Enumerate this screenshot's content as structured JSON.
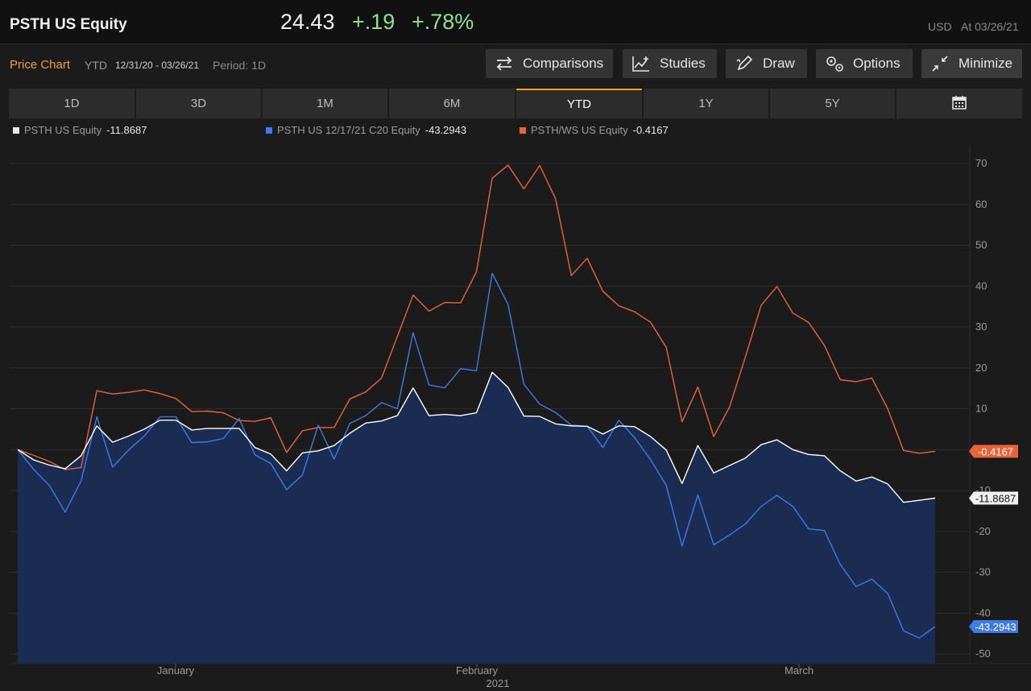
{
  "header": {
    "ticker": "PSTH US Equity",
    "price": "24.43",
    "change": "+.19",
    "change_pct": "+.78%",
    "currency": "USD",
    "as_of": "At 03/26/21"
  },
  "subheader": {
    "title": "Price Chart",
    "mode": "YTD",
    "date_range": "12/31/20 - 03/26/21",
    "period": "Period: 1D"
  },
  "toolbar": {
    "comparisons": "Comparisons",
    "studies": "Studies",
    "draw": "Draw",
    "options": "Options",
    "minimize": "Minimize"
  },
  "tabs": [
    "1D",
    "3D",
    "1M",
    "6M",
    "YTD",
    "1Y",
    "5Y"
  ],
  "active_tab": "YTD",
  "colors": {
    "accent": "#f0a030",
    "equity": "#ffffff",
    "option": "#3f7ae6",
    "warrant": "#e8643a",
    "positive": "#8ee28e",
    "area_fill": "#1b2c52"
  },
  "chart_data": {
    "type": "line",
    "ylim": [
      -50,
      70
    ],
    "yticks": [
      70,
      60,
      50,
      40,
      30,
      20,
      10,
      -10,
      -20,
      -30,
      -40,
      -50
    ],
    "x_labels": [
      "January",
      "February",
      "March"
    ],
    "x_year_label": "2021",
    "series": [
      {
        "name": "PSTH US Equity",
        "last_value": "-11.8687",
        "tag_label": "-11.8687",
        "values": [
          0,
          -2.5,
          -3.8,
          -4.7,
          -1.5,
          5.8,
          1.8,
          3.3,
          5,
          7.2,
          7.2,
          4.8,
          5.2,
          5.2,
          5.2,
          0.5,
          -1.1,
          -5.2,
          -0.8,
          -0.3,
          1,
          4,
          6.5,
          7,
          8.3,
          15.1,
          8.3,
          8.6,
          8.3,
          9,
          18.9,
          15.2,
          8.2,
          8.1,
          6.3,
          5.8,
          5.7,
          3.8,
          5.8,
          5.6,
          3.2,
          -0.1,
          -8.3,
          1,
          -5.7,
          -3.9,
          -2.1,
          1.2,
          2.4,
          0,
          -1.2,
          -1.5,
          -5.2,
          -7.7,
          -6.7,
          -8.4,
          -12.9,
          -12.4,
          -11.8687
        ]
      },
      {
        "name": "PSTH US 12/17/21 C20 Equity",
        "last_value": "-43.2943",
        "tag_label": "-43.2943",
        "values": [
          0,
          -4.8,
          -8.8,
          -15.3,
          -7.7,
          8,
          -4.3,
          -0.1,
          3.3,
          8,
          8,
          1.7,
          1.9,
          2.7,
          7.6,
          -1.3,
          -3.4,
          -9.8,
          -6.2,
          6,
          -2.3,
          6.4,
          8.3,
          11.5,
          10,
          28.6,
          15.8,
          15.1,
          19.8,
          19.3,
          43.1,
          35.5,
          16,
          11.1,
          9.1,
          6,
          5.7,
          0.5,
          7.2,
          2.9,
          -2.4,
          -8.8,
          -23.6,
          -11.1,
          -23.3,
          -20.9,
          -18.2,
          -13.9,
          -11.2,
          -13.9,
          -19.4,
          -19.8,
          -28.1,
          -33.5,
          -31.7,
          -35.2,
          -44.3,
          -46.1,
          -43.2943
        ]
      },
      {
        "name": "PSTH/WS US Equity",
        "last_value": "-0.4167",
        "tag_label": "-0.4167",
        "values": [
          0,
          -1.4,
          -2.9,
          -4.9,
          -4.4,
          14.4,
          13.6,
          14,
          14.6,
          13.7,
          12.5,
          9.3,
          9.4,
          9,
          7.1,
          6.9,
          7.8,
          -0.7,
          4.6,
          5.4,
          5.4,
          12.4,
          14.1,
          17.5,
          27.7,
          37.8,
          33.9,
          36,
          35.9,
          43.5,
          66.4,
          69.6,
          63.8,
          69.5,
          61.4,
          42.6,
          46.8,
          38.7,
          35.2,
          33.7,
          31.2,
          25,
          6.8,
          15.3,
          3.2,
          10.4,
          22.6,
          35.3,
          39.9,
          33.4,
          31.1,
          25.5,
          17.1,
          16.6,
          17.5,
          10,
          -0.2,
          -0.9,
          -0.4167
        ]
      }
    ]
  }
}
